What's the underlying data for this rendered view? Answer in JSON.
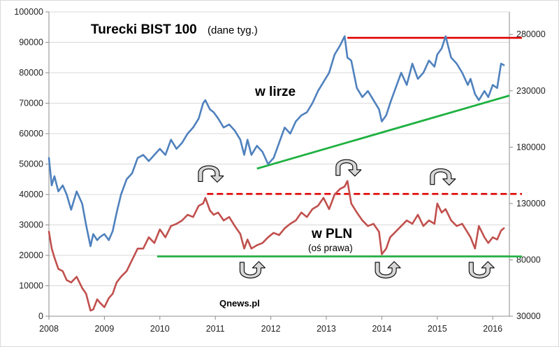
{
  "chart_data": {
    "type": "line",
    "title": "Turecki BIST 100",
    "subtitle": "(dane tyg.)",
    "source": "Qnews.pl",
    "x_ticks": [
      "2008",
      "2009",
      "2010",
      "2011",
      "2012",
      "2013",
      "2014",
      "2015",
      "2016"
    ],
    "x_range": [
      2008.0,
      2016.3
    ],
    "y_left": {
      "ticks": [
        "0",
        "10000",
        "20000",
        "30000",
        "40000",
        "50000",
        "60000",
        "70000",
        "80000",
        "90000",
        "100000"
      ],
      "range": [
        0,
        100000
      ]
    },
    "y_right": {
      "ticks": [
        "30000",
        "80000",
        "130000",
        "180000",
        "230000",
        "280000"
      ],
      "range": [
        30000,
        300000
      ]
    },
    "series": [
      {
        "name": "w lirze",
        "axis": "left",
        "color": "#4f81bd",
        "x": [
          2008.0,
          2008.05,
          2008.1,
          2008.17,
          2008.25,
          2008.32,
          2008.4,
          2008.5,
          2008.6,
          2008.67,
          2008.75,
          2008.8,
          2008.87,
          2008.92,
          2009.0,
          2009.08,
          2009.15,
          2009.22,
          2009.3,
          2009.4,
          2009.5,
          2009.6,
          2009.7,
          2009.8,
          2009.9,
          2010.0,
          2010.1,
          2010.2,
          2010.3,
          2010.4,
          2010.5,
          2010.6,
          2010.7,
          2010.78,
          2010.82,
          2010.9,
          2010.97,
          2011.05,
          2011.15,
          2011.25,
          2011.35,
          2011.45,
          2011.52,
          2011.58,
          2011.65,
          2011.75,
          2011.85,
          2011.95,
          2012.05,
          2012.15,
          2012.25,
          2012.35,
          2012.45,
          2012.55,
          2012.65,
          2012.75,
          2012.85,
          2012.95,
          2013.05,
          2013.15,
          2013.25,
          2013.33,
          2013.38,
          2013.45,
          2013.55,
          2013.65,
          2013.75,
          2013.85,
          2013.95,
          2014.0,
          2014.08,
          2014.15,
          2014.25,
          2014.35,
          2014.45,
          2014.55,
          2014.65,
          2014.75,
          2014.85,
          2014.95,
          2015.0,
          2015.08,
          2015.15,
          2015.25,
          2015.35,
          2015.45,
          2015.55,
          2015.6,
          2015.68,
          2015.75,
          2015.85,
          2015.92,
          2016.0,
          2016.08,
          2016.15,
          2016.2
        ],
        "y": [
          52000,
          43000,
          46000,
          41000,
          43000,
          40000,
          35000,
          41000,
          37000,
          30000,
          23000,
          27000,
          25000,
          26000,
          27000,
          25000,
          28000,
          34000,
          40000,
          45000,
          47000,
          52000,
          53000,
          51000,
          53000,
          55000,
          53000,
          58000,
          55000,
          57000,
          60000,
          62000,
          65000,
          70000,
          71000,
          68000,
          67000,
          65000,
          62000,
          63000,
          61000,
          58000,
          53000,
          58000,
          53000,
          56000,
          54000,
          50000,
          52000,
          57000,
          62000,
          60000,
          64000,
          66000,
          67000,
          70000,
          74000,
          77000,
          80000,
          86000,
          89000,
          92000,
          85000,
          84000,
          75000,
          72000,
          74000,
          71000,
          68000,
          64000,
          66000,
          70000,
          75000,
          80000,
          76000,
          83000,
          78000,
          80000,
          84000,
          82000,
          86000,
          88000,
          92000,
          85000,
          83000,
          80000,
          76000,
          78000,
          73000,
          71000,
          74000,
          72000,
          76000,
          75000,
          83000,
          82500
        ]
      },
      {
        "name": "w PLN",
        "axis": "right",
        "note": "(oś prawa)",
        "color": "#c0504d",
        "x": [
          2008.0,
          2008.05,
          2008.1,
          2008.17,
          2008.25,
          2008.32,
          2008.4,
          2008.5,
          2008.6,
          2008.67,
          2008.75,
          2008.8,
          2008.87,
          2008.92,
          2009.0,
          2009.08,
          2009.15,
          2009.22,
          2009.3,
          2009.4,
          2009.5,
          2009.6,
          2009.7,
          2009.8,
          2009.9,
          2010.0,
          2010.1,
          2010.2,
          2010.3,
          2010.4,
          2010.5,
          2010.6,
          2010.7,
          2010.78,
          2010.82,
          2010.9,
          2010.97,
          2011.05,
          2011.15,
          2011.25,
          2011.35,
          2011.45,
          2011.52,
          2011.58,
          2011.65,
          2011.75,
          2011.85,
          2011.95,
          2012.05,
          2012.15,
          2012.25,
          2012.35,
          2012.45,
          2012.55,
          2012.65,
          2012.75,
          2012.85,
          2012.95,
          2013.05,
          2013.15,
          2013.25,
          2013.33,
          2013.38,
          2013.45,
          2013.55,
          2013.65,
          2013.75,
          2013.85,
          2013.95,
          2014.0,
          2014.08,
          2014.15,
          2014.25,
          2014.35,
          2014.45,
          2014.55,
          2014.65,
          2014.75,
          2014.85,
          2014.95,
          2015.0,
          2015.08,
          2015.15,
          2015.25,
          2015.35,
          2015.45,
          2015.55,
          2015.6,
          2015.68,
          2015.75,
          2015.85,
          2015.92,
          2016.0,
          2016.08,
          2016.15,
          2016.2
        ],
        "y": [
          105000,
          90000,
          82000,
          72000,
          70000,
          62000,
          60000,
          65000,
          55000,
          50000,
          35000,
          36000,
          45000,
          42000,
          38000,
          46000,
          50000,
          60000,
          65000,
          70000,
          80000,
          90000,
          90000,
          100000,
          95000,
          107000,
          100000,
          110000,
          112000,
          115000,
          120000,
          118000,
          128000,
          130000,
          135000,
          124000,
          120000,
          122000,
          115000,
          118000,
          110000,
          103000,
          90000,
          98000,
          90000,
          93000,
          95000,
          100000,
          104000,
          102000,
          108000,
          112000,
          115000,
          122000,
          118000,
          125000,
          128000,
          135000,
          125000,
          138000,
          143000,
          145000,
          150000,
          130000,
          122000,
          115000,
          110000,
          112000,
          105000,
          85000,
          90000,
          100000,
          105000,
          110000,
          115000,
          112000,
          120000,
          110000,
          115000,
          112000,
          130000,
          122000,
          125000,
          115000,
          110000,
          112000,
          104000,
          100000,
          90000,
          110000,
          100000,
          95000,
          100000,
          98000,
          106000,
          108000
        ]
      }
    ],
    "annotations": [
      {
        "name": "resistance-red-solid",
        "kind": "horizontal",
        "axis": "right",
        "value": 277000,
        "from_x": 2013.38,
        "color": "#e00000",
        "style": "solid"
      },
      {
        "name": "resistance-red-dashed",
        "kind": "horizontal",
        "axis": "right",
        "value": 138500,
        "from_x": 2010.85,
        "color": "#e00000",
        "style": "dashed"
      },
      {
        "name": "support-green-trend",
        "kind": "trend",
        "axis": "left",
        "from": [
          2011.75,
          48500
        ],
        "to": [
          2016.3,
          72500
        ],
        "color": "#1fb141"
      },
      {
        "name": "support-green-flat",
        "kind": "horizontal",
        "axis": "right",
        "value": 83000,
        "from_x": 2009.95,
        "color": "#1fb141"
      }
    ],
    "arrows": [
      {
        "direction": "down",
        "x": 2010.87,
        "y_left": 47500
      },
      {
        "direction": "down",
        "x": 2013.35,
        "y_left": 49500
      },
      {
        "direction": "down",
        "x": 2015.05,
        "y_left": 46500
      },
      {
        "direction": "up",
        "x": 2011.62,
        "y_left": 14500
      },
      {
        "direction": "up",
        "x": 2014.06,
        "y_left": 14500
      },
      {
        "direction": "up",
        "x": 2015.75,
        "y_left": 14500
      }
    ]
  }
}
